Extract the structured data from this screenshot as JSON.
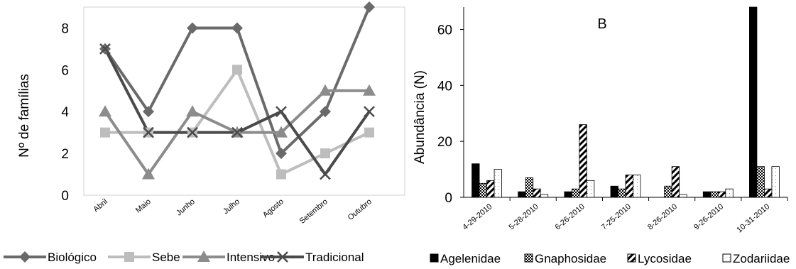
{
  "chart_data": [
    {
      "type": "line",
      "title": "",
      "xlabel": "",
      "ylabel": "Nº de famílias",
      "ylim": [
        0,
        9
      ],
      "yticks": [
        0,
        2,
        4,
        6,
        8
      ],
      "categories": [
        "Abril",
        "Maio",
        "Junho",
        "Julho",
        "Agosto",
        "Setembro",
        "Outubro"
      ],
      "series": [
        {
          "name": "Biológico",
          "marker": "diamond",
          "color": "#6a6a6a",
          "values": [
            7,
            4,
            8,
            8,
            2,
            4,
            9
          ]
        },
        {
          "name": "Sebe",
          "marker": "square",
          "color": "#bdbdbd",
          "values": [
            3,
            3,
            3,
            6,
            1,
            2,
            3
          ]
        },
        {
          "name": "Intensivo",
          "marker": "triangle",
          "color": "#8c8c8c",
          "values": [
            4,
            1,
            4,
            3,
            3,
            5,
            5
          ]
        },
        {
          "name": "Tradicional",
          "marker": "x",
          "color": "#4a4a4a",
          "values": [
            7,
            3,
            3,
            3,
            4,
            1,
            4
          ]
        }
      ],
      "legend_position": "bottom"
    },
    {
      "type": "bar",
      "title": "",
      "panel_label": "B",
      "xlabel": "",
      "ylabel": "Abundância (N)",
      "ylim": [
        0,
        68
      ],
      "yticks": [
        0,
        20,
        40,
        60
      ],
      "categories": [
        "4-29-2010",
        "5-28-2010",
        "6-26-2010",
        "7-25-2010",
        "8-26-2010",
        "9-26-2010",
        "10-31-2010"
      ],
      "series": [
        {
          "name": "Agelenidae",
          "pattern": "solid",
          "values": [
            12,
            2,
            2,
            4,
            0,
            2,
            68
          ]
        },
        {
          "name": "Gnaphosidae",
          "pattern": "checker",
          "values": [
            5,
            7,
            3,
            3,
            4,
            2,
            11
          ]
        },
        {
          "name": "Lycosidae",
          "pattern": "diagonal",
          "values": [
            6,
            3,
            26,
            8,
            11,
            2,
            3
          ]
        },
        {
          "name": "Zodariidae",
          "pattern": "dots",
          "values": [
            10,
            1,
            6,
            8,
            1,
            3,
            11
          ]
        }
      ],
      "legend_position": "bottom"
    }
  ]
}
